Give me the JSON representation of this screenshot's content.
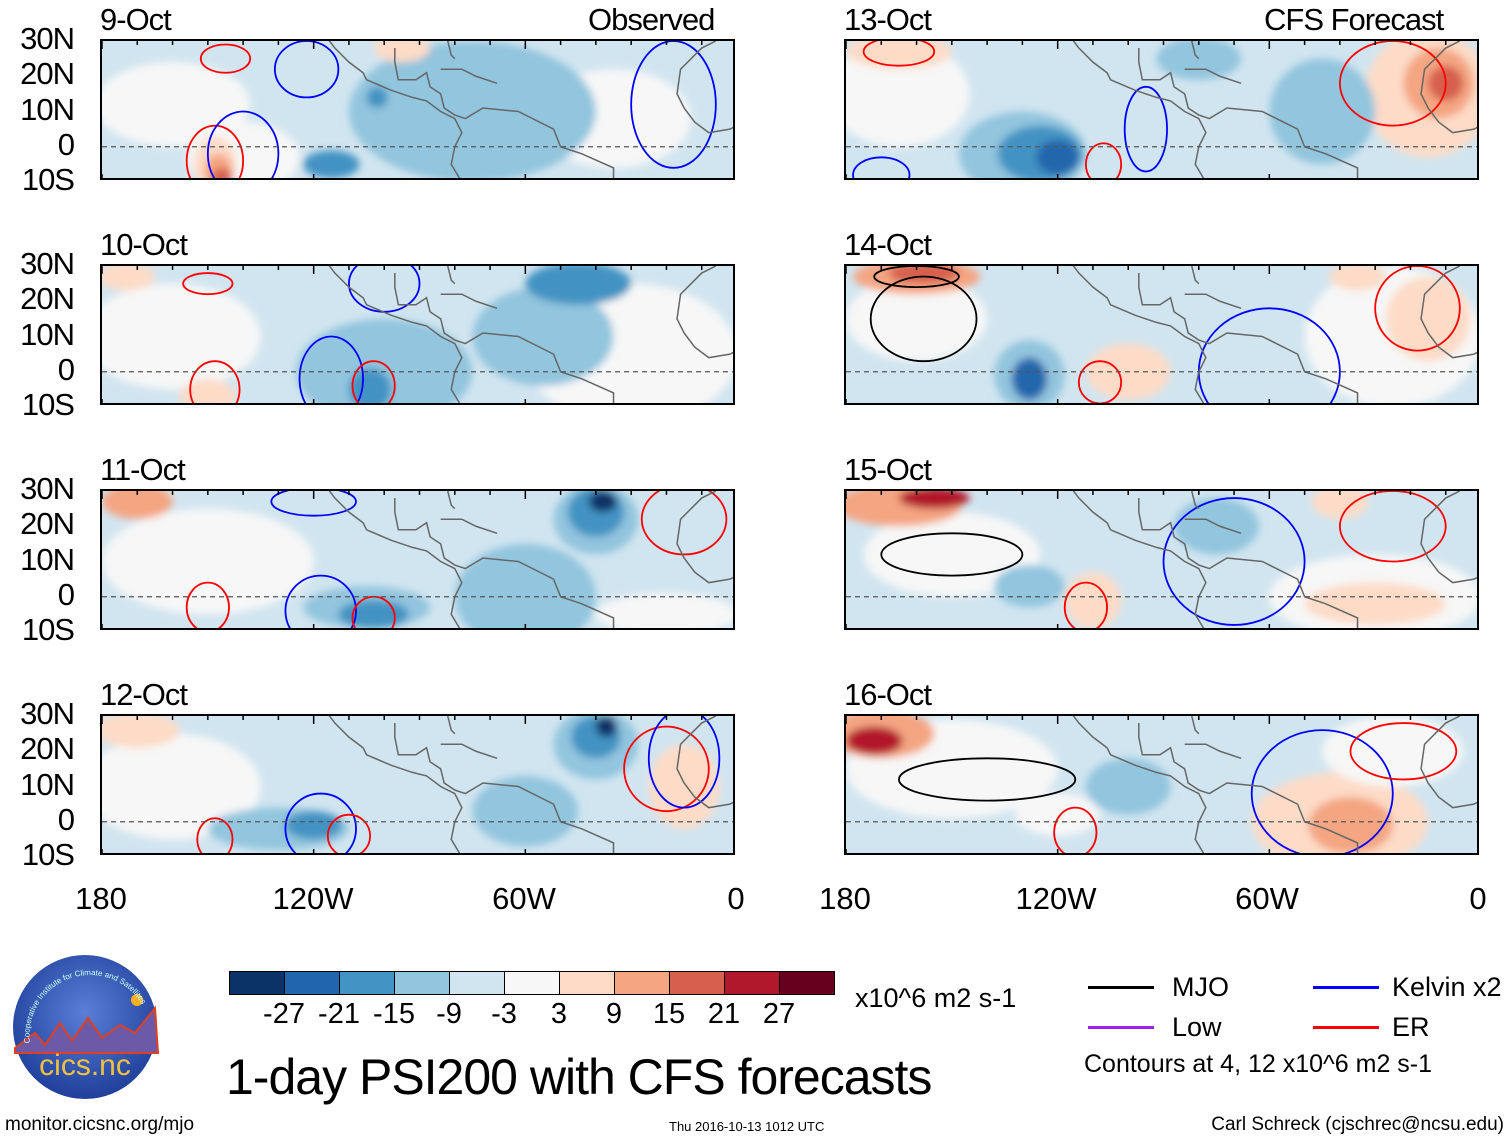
{
  "headers": {
    "observed": "Observed",
    "forecast": "CFS Forecast"
  },
  "panels_left": [
    "9-Oct",
    "10-Oct",
    "11-Oct",
    "12-Oct"
  ],
  "panels_right": [
    "13-Oct",
    "14-Oct",
    "15-Oct",
    "16-Oct"
  ],
  "lat_labels": [
    "30N",
    "20N",
    "10N",
    "0",
    "10S"
  ],
  "lon_labels": [
    "180",
    "120W",
    "60W",
    "0"
  ],
  "colorbar": {
    "colors": [
      "#0b3366",
      "#2166ac",
      "#4393c3",
      "#92c5de",
      "#d1e5f0",
      "#f7f7f7",
      "#fddbc7",
      "#f4a582",
      "#d6604d",
      "#b2182b",
      "#67001f"
    ],
    "ticks": [
      "-27",
      "-21",
      "-15",
      "-9",
      "-3",
      "3",
      "9",
      "15",
      "21",
      "27"
    ],
    "units": "x10^6 m2 s-1"
  },
  "legend": {
    "items": [
      {
        "label": "MJO",
        "color": "#000000"
      },
      {
        "label": "Kelvin x2",
        "color": "#0000ff"
      },
      {
        "label": "Low",
        "color": "#a020f0"
      },
      {
        "label": "ER",
        "color": "#ff0000"
      }
    ],
    "note": "Contours at 4, 12 x10^6 m2 s-1"
  },
  "title": "1-day PSI200 with CFS forecasts",
  "logo": {
    "text": "cics.nc",
    "arc": "Cooperative Institute for Climate and Satellites"
  },
  "footer": {
    "url": "monitor.cicsnc.org/mjo",
    "timestamp": "Thu 2016-10-13 1012 UTC",
    "author": "Carl Schreck (cjschrec@ncsu.edu)"
  }
}
